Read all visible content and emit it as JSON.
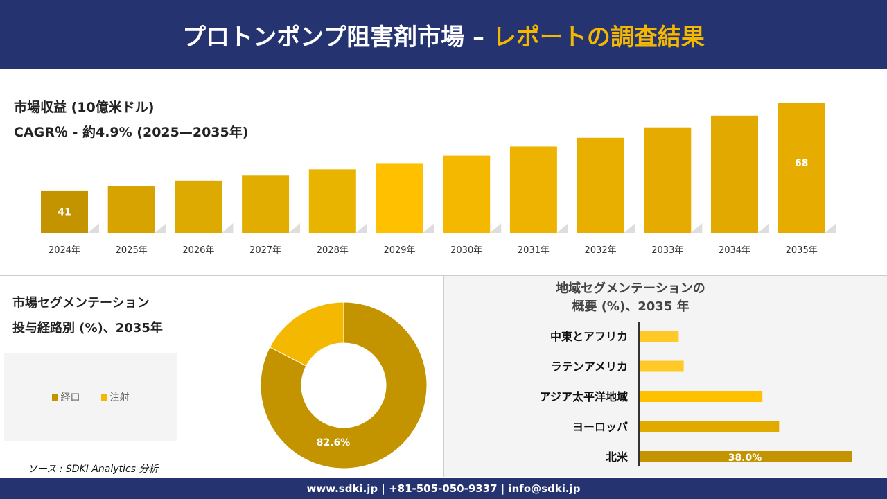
{
  "header": {
    "title_main": "プロトンポンプ阻害剤市場 –",
    "title_accent": "レポートの調査結果"
  },
  "revenue": {
    "title": "市場収益 (10億米ドル)",
    "cagr": "CAGR％ - 約4.9% (2025—2035年)"
  },
  "segment": {
    "title": "市場セグメンテーション",
    "subtitle": "投与経路別 (%)、2035年"
  },
  "region": {
    "title_line1": "地域セグメンテーションの",
    "title_line2": "概要 (%)、2035 年"
  },
  "source": "ソース : SDKI Analytics 分析",
  "footer": "www.sdki.jp | +81-505-050-9337 | info@sdki.jp",
  "colors": {
    "navy": "#253470",
    "accent": "#f5b800",
    "dark_gold": "#c39400",
    "gold": "#e0aa00",
    "yellow": "#ffc000",
    "light_yellow": "#ffca28"
  },
  "chart_data": [
    {
      "type": "bar",
      "categories": [
        "2024年",
        "2025年",
        "2026年",
        "2027年",
        "2028年",
        "2029年",
        "2030年",
        "2031年",
        "2032年",
        "2033年",
        "2034年",
        "2035年"
      ],
      "values": [
        41,
        42.3,
        44.0,
        45.6,
        47.5,
        49.4,
        51.7,
        54.5,
        57.2,
        60.4,
        64.0,
        68
      ],
      "data_labels": {
        "0": "41",
        "11": "68"
      },
      "ylim": [
        28,
        70
      ],
      "grid": false
    },
    {
      "type": "pie",
      "donut": true,
      "categories": [
        "経口",
        "注射"
      ],
      "values": [
        82.6,
        17.4
      ],
      "data_labels": [
        "82.6%",
        ""
      ],
      "legend": "left"
    },
    {
      "type": "bar",
      "orientation": "horizontal",
      "categories": [
        "中東とアフリカ",
        "ラテンアメリカ",
        "アジア太平洋地域",
        "ヨーロッパ",
        "北米"
      ],
      "values": [
        7.0,
        7.9,
        22.0,
        25.0,
        38.0
      ],
      "data_labels": [
        "",
        "",
        "",
        "",
        "38.0%"
      ],
      "grid": false
    }
  ]
}
